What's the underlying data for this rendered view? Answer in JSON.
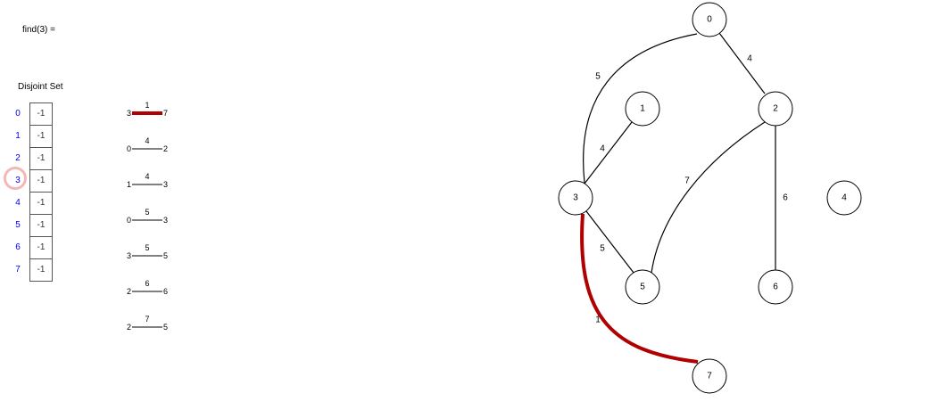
{
  "find_label": "find(3) =",
  "disjoint_set": {
    "title": "Disjoint Set",
    "indices": [
      "0",
      "1",
      "2",
      "3",
      "4",
      "5",
      "6",
      "7"
    ],
    "values": [
      "-1",
      "-1",
      "-1",
      "-1",
      "-1",
      "-1",
      "-1",
      "-1"
    ],
    "highlighted_index": "3",
    "index_color": "#0000ff",
    "highlight_color": "#f4b7b7"
  },
  "edge_list": [
    {
      "from": "3",
      "to": "7",
      "weight": "1",
      "highlighted": true
    },
    {
      "from": "0",
      "to": "2",
      "weight": "4",
      "highlighted": false
    },
    {
      "from": "1",
      "to": "3",
      "weight": "4",
      "highlighted": false
    },
    {
      "from": "0",
      "to": "3",
      "weight": "5",
      "highlighted": false
    },
    {
      "from": "3",
      "to": "5",
      "weight": "5",
      "highlighted": false
    },
    {
      "from": "2",
      "to": "6",
      "weight": "6",
      "highlighted": false
    },
    {
      "from": "2",
      "to": "5",
      "weight": "7",
      "highlighted": false
    }
  ],
  "graph": {
    "nodes": [
      "0",
      "1",
      "2",
      "3",
      "4",
      "5",
      "6",
      "7"
    ],
    "edges": [
      {
        "from": "0",
        "to": "3",
        "weight": "5",
        "highlighted": false
      },
      {
        "from": "0",
        "to": "2",
        "weight": "4",
        "highlighted": false
      },
      {
        "from": "1",
        "to": "3",
        "weight": "4",
        "highlighted": false
      },
      {
        "from": "2",
        "to": "5",
        "weight": "7",
        "highlighted": false
      },
      {
        "from": "2",
        "to": "6",
        "weight": "6",
        "highlighted": false
      },
      {
        "from": "3",
        "to": "5",
        "weight": "5",
        "highlighted": false
      },
      {
        "from": "3",
        "to": "7",
        "weight": "1",
        "highlighted": true
      }
    ],
    "highlight_color": "#b00000"
  }
}
